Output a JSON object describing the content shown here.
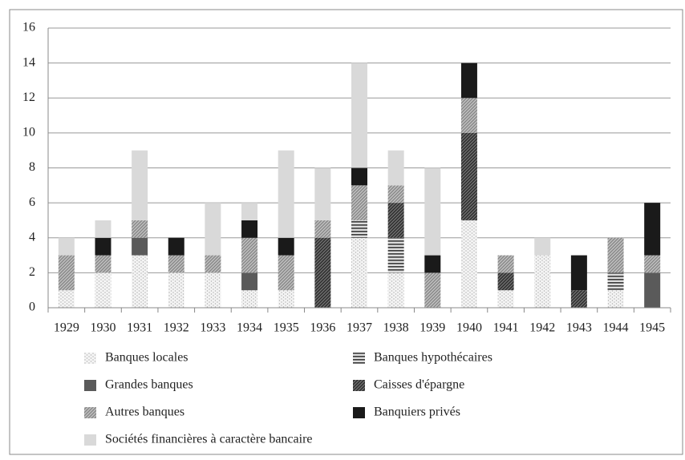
{
  "chart_data": {
    "type": "bar",
    "stacked": true,
    "categories": [
      "1929",
      "1930",
      "1931",
      "1932",
      "1933",
      "1934",
      "1935",
      "1936",
      "1937",
      "1938",
      "1939",
      "1940",
      "1941",
      "1942",
      "1943",
      "1944",
      "1945"
    ],
    "series": [
      {
        "name": "Banques locales",
        "color": "#b0b0b0",
        "values": [
          1,
          2,
          3,
          2,
          2,
          1,
          1,
          0,
          4,
          2,
          0,
          5,
          1,
          3,
          0,
          1,
          0
        ]
      },
      {
        "name": "Banques hypothécaires",
        "color": "#3a3a3a",
        "values": [
          0,
          0,
          0,
          0,
          0,
          0,
          0,
          0,
          1,
          2,
          0,
          0,
          0,
          0,
          0,
          1,
          0
        ]
      },
      {
        "name": "Grandes banques",
        "color": "#5a5a5a",
        "values": [
          0,
          0,
          1,
          0,
          0,
          1,
          0,
          0,
          0,
          0,
          0,
          0,
          0,
          0,
          0,
          0,
          2
        ]
      },
      {
        "name": "Caisses d'épargne",
        "color": "#2e2e2e",
        "values": [
          0,
          0,
          0,
          0,
          0,
          0,
          0,
          4,
          0,
          2,
          0,
          5,
          1,
          0,
          1,
          0,
          0
        ]
      },
      {
        "name": "Autres banques",
        "color": "#8a8a8a",
        "values": [
          2,
          1,
          1,
          1,
          1,
          2,
          2,
          1,
          2,
          1,
          2,
          2,
          1,
          0,
          0,
          2,
          1
        ]
      },
      {
        "name": "Banquiers privés",
        "color": "#1a1a1a",
        "values": [
          0,
          1,
          0,
          1,
          0,
          1,
          1,
          0,
          1,
          0,
          1,
          2,
          0,
          0,
          2,
          0,
          3
        ]
      },
      {
        "name": "Sociétés financières à caractère bancaire",
        "color": "#d9d9d9",
        "values": [
          1,
          1,
          4,
          0,
          3,
          1,
          5,
          3,
          6,
          2,
          5,
          0,
          0,
          1,
          0,
          0,
          0
        ]
      }
    ],
    "ylim": [
      0,
      16
    ],
    "yticks": [
      0,
      2,
      4,
      6,
      8,
      10,
      12,
      14,
      16
    ],
    "grid": true
  }
}
